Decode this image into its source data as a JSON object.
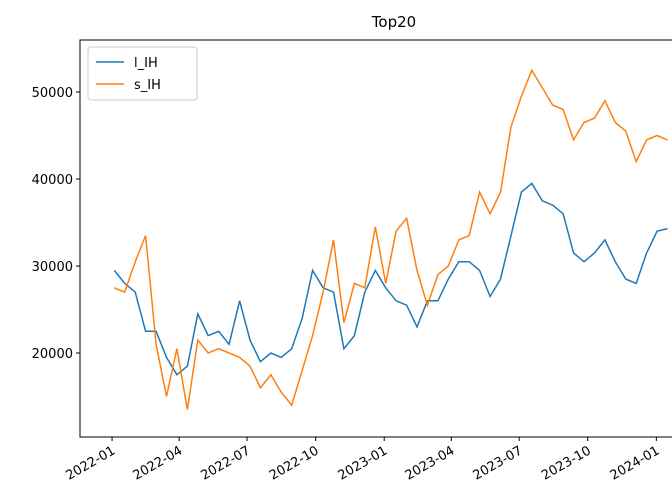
{
  "chart_data": {
    "type": "line",
    "title": "Top20",
    "x": [
      "2022-01-04",
      "2022-01-18",
      "2022-02-01",
      "2022-02-15",
      "2022-03-01",
      "2022-03-15",
      "2022-03-29",
      "2022-04-12",
      "2022-04-26",
      "2022-05-10",
      "2022-05-24",
      "2022-06-07",
      "2022-06-21",
      "2022-07-05",
      "2022-07-19",
      "2022-08-02",
      "2022-08-16",
      "2022-08-30",
      "2022-09-13",
      "2022-09-27",
      "2022-10-11",
      "2022-10-25",
      "2022-11-08",
      "2022-11-22",
      "2022-12-06",
      "2022-12-20",
      "2023-01-03",
      "2023-01-17",
      "2023-01-31",
      "2023-02-14",
      "2023-02-28",
      "2023-03-14",
      "2023-03-28",
      "2023-04-11",
      "2023-04-25",
      "2023-05-09",
      "2023-05-23",
      "2023-06-06",
      "2023-06-20",
      "2023-07-04",
      "2023-07-18",
      "2023-08-01",
      "2023-08-15",
      "2023-08-29",
      "2023-09-12",
      "2023-09-26",
      "2023-10-10",
      "2023-10-24",
      "2023-11-07",
      "2023-11-21",
      "2023-12-05",
      "2023-12-19",
      "2024-01-02",
      "2024-01-16"
    ],
    "series": [
      {
        "name": "l_IH",
        "color": "#1f77b4",
        "values": [
          29500,
          28000,
          27000,
          22500,
          22500,
          19500,
          17500,
          18500,
          24500,
          22000,
          22500,
          21000,
          26000,
          21500,
          19000,
          20000,
          19500,
          20500,
          24000,
          29500,
          27500,
          27000,
          20500,
          22000,
          27000,
          29500,
          27500,
          26000,
          25500,
          23000,
          26000,
          26000,
          28500,
          30500,
          30500,
          29500,
          26500,
          28500,
          33500,
          38500,
          39500,
          37500,
          37000,
          36000,
          31500,
          30500,
          31500,
          33000,
          30500,
          28500,
          28000,
          31500,
          34000,
          34300
        ]
      },
      {
        "name": "s_IH",
        "color": "#ff7f0e",
        "values": [
          27500,
          27000,
          30500,
          33500,
          21000,
          15000,
          20500,
          13500,
          21500,
          20000,
          20500,
          20000,
          19500,
          18500,
          16000,
          17500,
          15500,
          14000,
          18000,
          22000,
          27000,
          33000,
          23500,
          28000,
          27500,
          34500,
          28000,
          34000,
          35500,
          29500,
          25500,
          29000,
          30000,
          33000,
          33500,
          38500,
          36000,
          38500,
          46000,
          49500,
          52500,
          50500,
          48500,
          48000,
          44500,
          46500,
          47000,
          49000,
          46500,
          45500,
          42000,
          44500,
          45000,
          44500
        ]
      }
    ],
    "xlim": [
      "2021-11-19",
      "2024-01-22"
    ],
    "xticks": [
      {
        "value": "2022-01-01",
        "label": "2022-01"
      },
      {
        "value": "2022-04-01",
        "label": "2022-04"
      },
      {
        "value": "2022-07-01",
        "label": "2022-07"
      },
      {
        "value": "2022-10-01",
        "label": "2022-10"
      },
      {
        "value": "2023-01-01",
        "label": "2023-01"
      },
      {
        "value": "2023-04-01",
        "label": "2023-04"
      },
      {
        "value": "2023-07-01",
        "label": "2023-07"
      },
      {
        "value": "2023-10-01",
        "label": "2023-10"
      },
      {
        "value": "2024-01-01",
        "label": "2024-01"
      }
    ],
    "ylim": [
      10350,
      55980
    ],
    "yticks": [
      20000,
      30000,
      40000,
      50000
    ],
    "legend": "upper left"
  }
}
